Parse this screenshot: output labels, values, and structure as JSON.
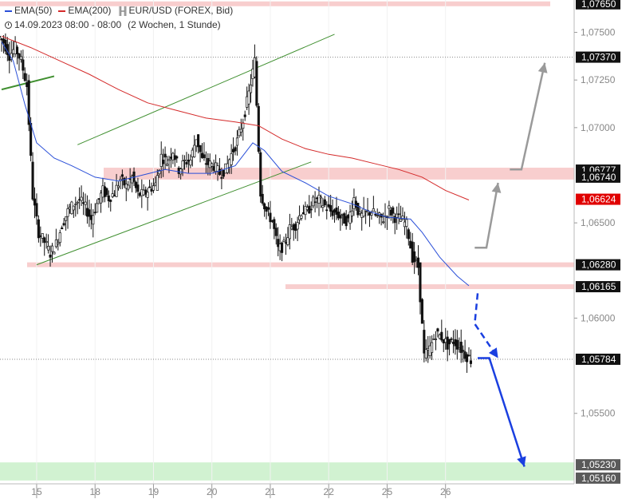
{
  "legend": {
    "ema50_label": "EMA(50)",
    "ema200_label": "EMA(200)",
    "instrument": "EUR/USD (FOREX, Bid)",
    "time_range": "14.09.2023 08:00 - 08:00",
    "period": "(2 Wochen, 1 Stunde)"
  },
  "colors": {
    "ema50": "#2a4fd8",
    "ema200": "#d42a2a",
    "candle": "#111111",
    "resistance_zone": "#f7c6c6",
    "support_zone": "#c9f0c9",
    "channel": "#3f8f2f",
    "projection_blue": "#1a3fe0",
    "projection_gray": "#9a9a9a",
    "price_box": "#111111",
    "ema200_box": "#e00000"
  },
  "chart_data": {
    "type": "candlestick",
    "y_axis": {
      "range": [
        1.0513,
        1.0767
      ],
      "ticks": [
        "1,07500",
        "1,07250",
        "1,07000",
        "1,06500",
        "1,06000",
        "1,05500"
      ],
      "tick_values": [
        1.075,
        1.0725,
        1.07,
        1.065,
        1.06,
        1.055
      ],
      "position": "right"
    },
    "x_axis": {
      "labels": [
        "15",
        "18",
        "19",
        "20",
        "21",
        "22",
        "25",
        "26"
      ],
      "index_range": [
        0,
        80
      ],
      "label_index": [
        6,
        16,
        26,
        36,
        46,
        56,
        66,
        76
      ]
    },
    "levels": [
      {
        "label": "1,07650",
        "value": 1.0765,
        "style": "zone-red"
      },
      {
        "label": "1,07370",
        "value": 1.0737,
        "style": "dotted"
      },
      {
        "label": "1,06777",
        "value": 1.06777,
        "style": "zone-red"
      },
      {
        "label": "1,06740",
        "value": 1.0674,
        "style": "zone-red"
      },
      {
        "label": "1,06280",
        "value": 1.0628,
        "style": "zone-red"
      },
      {
        "label": "1,06165",
        "value": 1.06165,
        "style": "zone-red"
      },
      {
        "label": "1,05784",
        "value": 1.05784,
        "style": "dotted-current"
      },
      {
        "label": "1,05230",
        "value": 1.0523,
        "style": "zone-green"
      },
      {
        "label": "1,05160",
        "value": 1.0516,
        "style": "zone-green"
      }
    ],
    "ema200_marker": {
      "label": "1,06624",
      "value": 1.06624
    },
    "current_price": 1.05784,
    "ema50": [
      [
        0,
        1.0745
      ],
      [
        2,
        1.0735
      ],
      [
        4,
        1.0712
      ],
      [
        6,
        1.0692
      ],
      [
        9,
        1.0684
      ],
      [
        12,
        1.068
      ],
      [
        16,
        1.0674
      ],
      [
        20,
        1.0672
      ],
      [
        24,
        1.0675
      ],
      [
        28,
        1.0678
      ],
      [
        32,
        1.0676
      ],
      [
        36,
        1.0676
      ],
      [
        40,
        1.068
      ],
      [
        43,
        1.0692
      ],
      [
        45,
        1.0688
      ],
      [
        48,
        1.0677
      ],
      [
        52,
        1.0671
      ],
      [
        56,
        1.0664
      ],
      [
        60,
        1.066
      ],
      [
        63,
        1.0656
      ],
      [
        66,
        1.0653
      ],
      [
        70,
        1.0652
      ],
      [
        72,
        1.0645
      ],
      [
        75,
        1.0632
      ],
      [
        78,
        1.0622
      ],
      [
        80,
        1.0617
      ]
    ],
    "ema200": [
      [
        0,
        1.0748
      ],
      [
        5,
        1.0742
      ],
      [
        10,
        1.0735
      ],
      [
        15,
        1.0728
      ],
      [
        20,
        1.072
      ],
      [
        25,
        1.0713
      ],
      [
        30,
        1.0709
      ],
      [
        35,
        1.0705
      ],
      [
        40,
        1.0703
      ],
      [
        44,
        1.0701
      ],
      [
        48,
        1.0694
      ],
      [
        52,
        1.0689
      ],
      [
        56,
        1.0686
      ],
      [
        60,
        1.0684
      ],
      [
        64,
        1.0681
      ],
      [
        68,
        1.0678
      ],
      [
        72,
        1.0674
      ],
      [
        76,
        1.0667
      ],
      [
        80,
        1.0662
      ]
    ],
    "close_series": [
      1.0745,
      1.0738,
      1.0742,
      1.0735,
      1.0722,
      1.0664,
      1.0645,
      1.064,
      1.0634,
      1.0639,
      1.0649,
      1.0656,
      1.066,
      1.0662,
      1.0658,
      1.0652,
      1.066,
      1.0667,
      1.0663,
      1.0666,
      1.0673,
      1.0669,
      1.0674,
      1.0665,
      1.0665,
      1.0668,
      1.067,
      1.0685,
      1.0682,
      1.0688,
      1.0678,
      1.0682,
      1.0683,
      1.0695,
      1.0683,
      1.0681,
      1.068,
      1.0676,
      1.0678,
      1.0686,
      1.0693,
      1.0704,
      1.0718,
      1.0735,
      1.0666,
      1.0656,
      1.0651,
      1.0636,
      1.0638,
      1.0647,
      1.0649,
      1.0656,
      1.0656,
      1.0661,
      1.0662,
      1.0659,
      1.0656,
      1.0655,
      1.0652,
      1.0651,
      1.0663,
      1.0653,
      1.0655,
      1.0656,
      1.0653,
      1.0652,
      1.0657,
      1.0653,
      1.0652,
      1.0649,
      1.0632,
      1.0627,
      1.058,
      1.0584,
      1.0592,
      1.059,
      1.0586,
      1.0588,
      1.0585,
      1.0581,
      1.0578
    ],
    "annotations": [
      {
        "type": "channel-upper",
        "from": [
          13,
          1.0691
        ],
        "to": [
          57,
          1.0749
        ]
      },
      {
        "type": "channel-lower",
        "from": [
          6,
          1.0628
        ],
        "to": [
          53,
          1.0682
        ]
      },
      {
        "type": "trendline",
        "from": [
          0,
          1.072
        ],
        "to": [
          9,
          1.0727
        ]
      },
      {
        "type": "arrow-gray",
        "points": [
          [
            81,
            1.0637
          ],
          [
            83,
            1.0637
          ],
          [
            85,
            1.0671
          ]
        ]
      },
      {
        "type": "arrow-gray",
        "points": [
          [
            87,
            1.0678
          ],
          [
            89,
            1.0678
          ],
          [
            93,
            1.0734
          ]
        ]
      },
      {
        "type": "arrow-blue-dashed",
        "points": [
          [
            81.5,
            1.0613
          ],
          [
            81,
            1.0597
          ],
          [
            85,
            1.0579
          ]
        ]
      },
      {
        "type": "arrow-blue",
        "points": [
          [
            81.5,
            1.0579
          ],
          [
            83.5,
            1.0579
          ],
          [
            89.5,
            1.0522
          ]
        ]
      }
    ]
  }
}
